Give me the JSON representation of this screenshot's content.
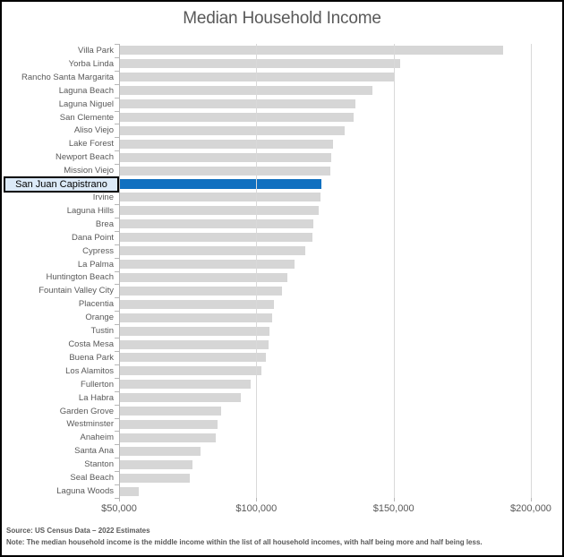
{
  "title": "Median Household Income",
  "footer": {
    "source": "Source: US Census Data – 2022 Estimates",
    "note": "Note: The median household income is the middle income within the list of all household incomes, with half being more and half being less."
  },
  "colors": {
    "bar": "#d6d6d6",
    "highlight_bar": "#1070c0",
    "highlight_label_bg": "#dceaf8",
    "axis": "#b7b7b7",
    "gridline": "#d9d9d9",
    "text": "#595959"
  },
  "chart_data": {
    "type": "bar",
    "orientation": "horizontal",
    "title": "Median Household Income",
    "xlim": [
      50000,
      200000
    ],
    "x_tick_labels": [
      "$50,000",
      "$100,000",
      "$150,000",
      "$200,000"
    ],
    "x_tick_values": [
      50000,
      100000,
      150000,
      200000
    ],
    "grid": "vertical-gridlines-on",
    "highlighted_category": "San Juan Capistrano",
    "categories": [
      "Villa Park",
      "Yorba Linda",
      "Rancho Santa Margarita",
      "Laguna Beach",
      "Laguna Niguel",
      "San Clemente",
      "Aliso Viejo",
      "Lake Forest",
      "Newport Beach",
      "Mission Viejo",
      "San Juan Capistrano",
      "Irvine",
      "Laguna Hills",
      "Brea",
      "Dana Point",
      "Cypress",
      "La Palma",
      "Huntington Beach",
      "Fountain Valley City",
      "Placentia",
      "Orange",
      "Tustin",
      "Costa Mesa",
      "Buena Park",
      "Los Alamitos",
      "Fullerton",
      "La Habra",
      "Garden Grove",
      "Westminster",
      "Anaheim",
      "Santa Ana",
      "Stanton",
      "Seal Beach",
      "Laguna Woods"
    ],
    "values": [
      189500,
      152000,
      150000,
      142000,
      135800,
      135000,
      132000,
      127500,
      127000,
      126500,
      123500,
      123000,
      122500,
      120500,
      120000,
      117500,
      113500,
      111000,
      109000,
      106000,
      105500,
      104500,
      104000,
      103000,
      101500,
      97500,
      94000,
      87000,
      85500,
      85000,
      79500,
      76500,
      75500,
      57000
    ]
  }
}
